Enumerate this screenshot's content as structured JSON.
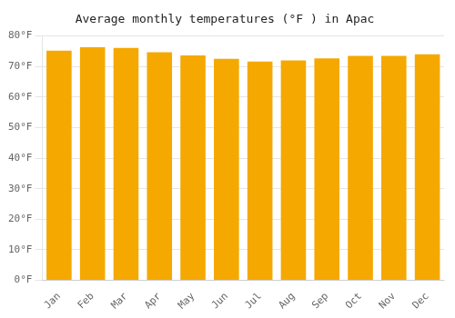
{
  "chart_data": {
    "type": "bar",
    "title": "Average monthly temperatures (°F ) in Apac",
    "categories": [
      "Jan",
      "Feb",
      "Mar",
      "Apr",
      "May",
      "Jun",
      "Jul",
      "Aug",
      "Sep",
      "Oct",
      "Nov",
      "Dec"
    ],
    "values": [
      75.2,
      76.3,
      76.1,
      74.7,
      73.6,
      72.5,
      71.6,
      72.0,
      72.7,
      73.5,
      73.5,
      74.0
    ],
    "color": "#F5A800",
    "ylim": [
      0,
      80
    ],
    "yticks": [
      {
        "value": 0,
        "label": "0°F"
      },
      {
        "value": 10,
        "label": "10°F"
      },
      {
        "value": 20,
        "label": "20°F"
      },
      {
        "value": 30,
        "label": "30°F"
      },
      {
        "value": 40,
        "label": "40°F"
      },
      {
        "value": 50,
        "label": "50°F"
      },
      {
        "value": 60,
        "label": "60°F"
      },
      {
        "value": 70,
        "label": "70°F"
      },
      {
        "value": 80,
        "label": "80°F"
      }
    ],
    "grid": true
  }
}
